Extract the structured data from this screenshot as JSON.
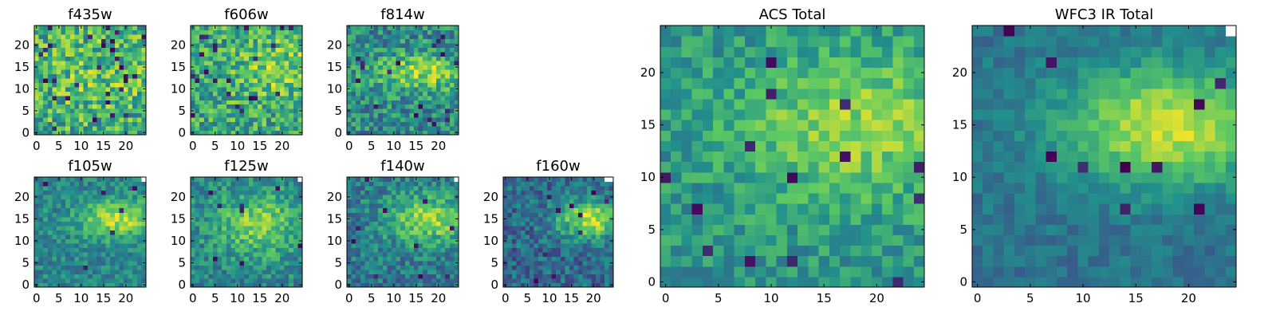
{
  "figure": {
    "description_type": "heatmap grid",
    "colormap": "viridis",
    "colormap_stops": [
      "#440154",
      "#3b528b",
      "#21918c",
      "#5ec962",
      "#fde725"
    ],
    "missing_pixel_color": "#ffffff"
  },
  "chart_data": [
    {
      "id": "f435w",
      "type": "heatmap",
      "title": "f435w",
      "grid": [
        25,
        25
      ],
      "xlim": [
        0,
        24
      ],
      "ylim": [
        0,
        24
      ],
      "x_ticks": [
        0,
        5,
        10,
        15,
        20
      ],
      "y_ticks": [
        0,
        5,
        10,
        15,
        20
      ],
      "x_tick_labels": [
        "0",
        "5",
        "10",
        "15",
        "20"
      ],
      "y_tick_labels": [
        "0",
        "5",
        "10",
        "15",
        "20"
      ],
      "noise": 0.55,
      "blob": {
        "cx": 14,
        "cy": 13,
        "sx": 9,
        "sy": 6,
        "amp": 0.1
      },
      "base": 0.62,
      "dark_pixels": 30,
      "missing": [],
      "seed": 11
    },
    {
      "id": "f606w",
      "type": "heatmap",
      "title": "f606w",
      "grid": [
        25,
        25
      ],
      "xlim": [
        0,
        24
      ],
      "ylim": [
        0,
        24
      ],
      "x_ticks": [
        0,
        5,
        10,
        15,
        20
      ],
      "y_ticks": [
        0,
        5,
        10,
        15,
        20
      ],
      "x_tick_labels": [
        "0",
        "5",
        "10",
        "15",
        "20"
      ],
      "y_tick_labels": [
        "0",
        "5",
        "10",
        "15",
        "20"
      ],
      "noise": 0.5,
      "blob": {
        "cx": 19,
        "cy": 15,
        "sx": 7,
        "sy": 5,
        "amp": 0.2
      },
      "base": 0.6,
      "dark_pixels": 22,
      "missing": [],
      "seed": 23
    },
    {
      "id": "f814w",
      "type": "heatmap",
      "title": "f814w",
      "grid": [
        25,
        25
      ],
      "xlim": [
        0,
        24
      ],
      "ylim": [
        0,
        24
      ],
      "x_ticks": [
        0,
        5,
        10,
        15,
        20
      ],
      "y_ticks": [
        0,
        5,
        10,
        15,
        20
      ],
      "x_tick_labels": [
        "0",
        "5",
        "10",
        "15",
        "20"
      ],
      "y_tick_labels": [
        "0",
        "5",
        "10",
        "15",
        "20"
      ],
      "noise": 0.45,
      "blob": {
        "cx": 17,
        "cy": 14,
        "sx": 8,
        "sy": 3,
        "amp": 0.35
      },
      "base": 0.48,
      "dark_pixels": 18,
      "missing": [],
      "seed": 37
    },
    {
      "id": "f105w",
      "type": "heatmap",
      "title": "f105w",
      "grid": [
        25,
        25
      ],
      "xlim": [
        0,
        24
      ],
      "ylim": [
        0,
        24
      ],
      "x_ticks": [
        0,
        5,
        10,
        15,
        20
      ],
      "y_ticks": [
        0,
        5,
        10,
        15,
        20
      ],
      "x_tick_labels": [
        "0",
        "5",
        "10",
        "15",
        "20"
      ],
      "y_tick_labels": [
        "0",
        "5",
        "10",
        "15",
        "20"
      ],
      "noise": 0.3,
      "blob": {
        "cx": 18,
        "cy": 15,
        "sx": 6,
        "sy": 3,
        "amp": 0.45
      },
      "base": 0.45,
      "dark_pixels": 6,
      "missing": [
        [
          24,
          24
        ]
      ],
      "seed": 41
    },
    {
      "id": "f125w",
      "type": "heatmap",
      "title": "f125w",
      "grid": [
        25,
        25
      ],
      "xlim": [
        0,
        24
      ],
      "ylim": [
        0,
        24
      ],
      "x_ticks": [
        0,
        5,
        10,
        15,
        20
      ],
      "y_ticks": [
        0,
        5,
        10,
        15,
        20
      ],
      "x_tick_labels": [
        "0",
        "5",
        "10",
        "15",
        "20"
      ],
      "y_tick_labels": [
        "0",
        "5",
        "10",
        "15",
        "20"
      ],
      "noise": 0.35,
      "blob": {
        "cx": 15,
        "cy": 14,
        "sx": 7,
        "sy": 5,
        "amp": 0.35
      },
      "base": 0.45,
      "dark_pixels": 8,
      "missing": [
        [
          24,
          24
        ]
      ],
      "seed": 53
    },
    {
      "id": "f140w",
      "type": "heatmap",
      "title": "f140w",
      "grid": [
        25,
        25
      ],
      "xlim": [
        0,
        24
      ],
      "ylim": [
        0,
        24
      ],
      "x_ticks": [
        0,
        5,
        10,
        15,
        20
      ],
      "y_ticks": [
        0,
        5,
        10,
        15,
        20
      ],
      "x_tick_labels": [
        "0",
        "5",
        "10",
        "15",
        "20"
      ],
      "y_tick_labels": [
        "0",
        "5",
        "10",
        "15",
        "20"
      ],
      "noise": 0.35,
      "blob": {
        "cx": 18,
        "cy": 15,
        "sx": 7,
        "sy": 4,
        "amp": 0.45
      },
      "base": 0.4,
      "dark_pixels": 10,
      "missing": [
        [
          24,
          24
        ]
      ],
      "seed": 67
    },
    {
      "id": "f160w",
      "type": "heatmap",
      "title": "f160w",
      "grid": [
        25,
        25
      ],
      "xlim": [
        0,
        24
      ],
      "ylim": [
        0,
        24
      ],
      "x_ticks": [
        0,
        5,
        10,
        15,
        20
      ],
      "y_ticks": [
        0,
        5,
        10,
        15,
        20
      ],
      "x_tick_labels": [
        "0",
        "5",
        "10",
        "15",
        "20"
      ],
      "y_tick_labels": [
        "0",
        "5",
        "10",
        "15",
        "20"
      ],
      "noise": 0.35,
      "blob": {
        "cx": 19,
        "cy": 15,
        "sx": 5,
        "sy": 3,
        "amp": 0.55
      },
      "base": 0.35,
      "dark_pixels": 10,
      "missing": [
        [
          24,
          24
        ],
        [
          23,
          24
        ]
      ],
      "seed": 79
    },
    {
      "id": "acs_total",
      "type": "heatmap",
      "title": "ACS Total",
      "grid": [
        25,
        25
      ],
      "xlim": [
        0,
        24
      ],
      "ylim": [
        0,
        24
      ],
      "x_ticks": [
        0,
        5,
        10,
        15,
        20
      ],
      "y_ticks": [
        0,
        5,
        10,
        15,
        20
      ],
      "x_tick_labels": [
        "0",
        "5",
        "10",
        "15",
        "20"
      ],
      "y_tick_labels": [
        "0",
        "5",
        "10",
        "15",
        "20"
      ],
      "noise": 0.3,
      "blob": {
        "cx": 18,
        "cy": 15,
        "sx": 8,
        "sy": 5,
        "amp": 0.3
      },
      "base": 0.52,
      "dark_pixels": 14,
      "missing": [],
      "seed": 97
    },
    {
      "id": "wfc3_ir_total",
      "type": "heatmap",
      "title": "WFC3 IR Total",
      "grid": [
        25,
        25
      ],
      "xlim": [
        0,
        24
      ],
      "ylim": [
        0,
        24
      ],
      "x_ticks": [
        0,
        5,
        10,
        15,
        20
      ],
      "y_ticks": [
        0,
        5,
        10,
        15,
        20
      ],
      "x_tick_labels": [
        "0",
        "5",
        "10",
        "15",
        "20"
      ],
      "y_tick_labels": [
        "0",
        "5",
        "10",
        "15",
        "20"
      ],
      "noise": 0.18,
      "blob": {
        "cx": 18,
        "cy": 15,
        "sx": 7,
        "sy": 4,
        "amp": 0.55
      },
      "base": 0.38,
      "dark_pixels": 10,
      "missing": [
        [
          24,
          24
        ]
      ],
      "seed": 131
    }
  ]
}
